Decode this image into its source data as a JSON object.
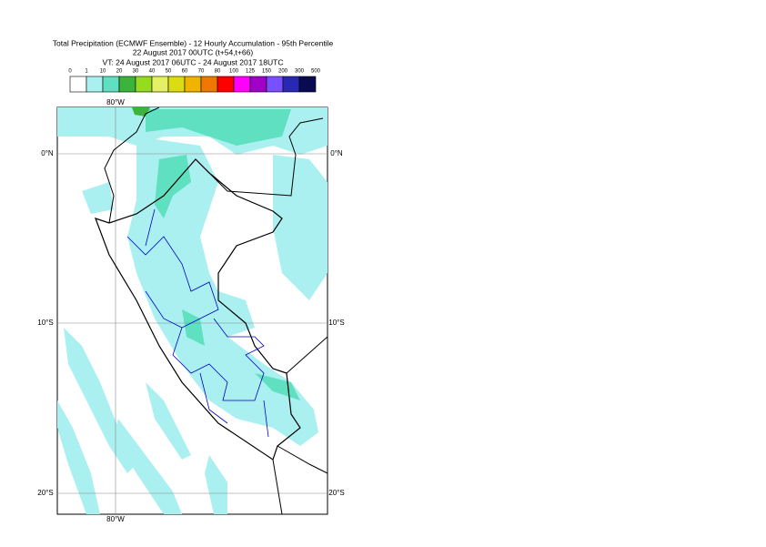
{
  "header": {
    "title": [
      "Total Precipitation (ECMWF Ensemble) - 12 Hourly Accumulation - 95th Percentile",
      "22 August 2017 00UTC (t+54,t+66)",
      "VT: 24 August 2017 06UTC - 24 August 2017 18UTC"
    ]
  },
  "colorbar": {
    "thresholds": [
      0,
      1,
      10,
      20,
      30,
      40,
      50,
      60,
      70,
      80,
      100,
      125,
      150,
      200,
      300,
      500
    ],
    "colors": [
      "#ffffff",
      "#aaf0f0",
      "#5fe0c0",
      "#3cb43c",
      "#96dc1e",
      "#e6f064",
      "#dcdc14",
      "#f0b400",
      "#f07800",
      "#ff0000",
      "#ff00ff",
      "#a000c8",
      "#7850ff",
      "#2828b4",
      "#0a0a50"
    ]
  },
  "map": {
    "lon_label": "80°W",
    "lat_labels": [
      "0°N",
      "10°S",
      "20°S"
    ]
  }
}
